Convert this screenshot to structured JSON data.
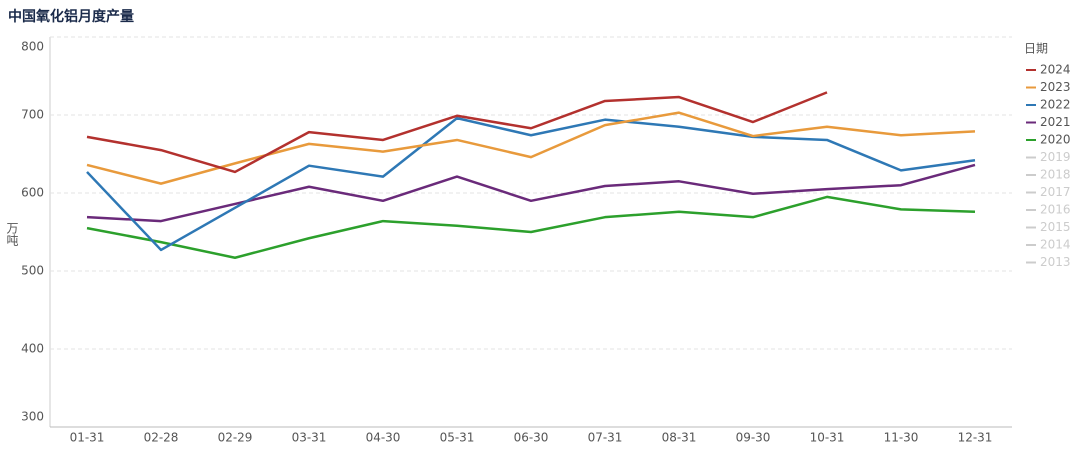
{
  "chart_data": {
    "type": "line",
    "title": "中国氧化铝月度产量",
    "y_label": "万吨",
    "legend_title": "日期",
    "categories": [
      "01-31",
      "02-28",
      "02-29",
      "03-31",
      "04-30",
      "05-31",
      "06-30",
      "07-31",
      "08-31",
      "09-30",
      "10-31",
      "11-30",
      "12-31"
    ],
    "series": [
      {
        "name": "2024",
        "color": "#b3312e",
        "values": [
          672,
          655,
          627,
          678,
          668,
          699,
          683,
          718,
          723,
          691,
          729,
          null,
          null
        ]
      },
      {
        "name": "2023",
        "color": "#e89a3c",
        "values": [
          636,
          612,
          638,
          663,
          653,
          668,
          646,
          687,
          703,
          673,
          685,
          674,
          679
        ]
      },
      {
        "name": "2022",
        "color": "#2e78b5",
        "values": [
          627,
          527,
          581,
          635,
          621,
          696,
          674,
          694,
          685,
          672,
          668,
          629,
          642
        ]
      },
      {
        "name": "2021",
        "color": "#6a2a7a",
        "values": [
          569,
          564,
          586,
          608,
          590,
          621,
          590,
          609,
          615,
          599,
          605,
          610,
          636
        ]
      },
      {
        "name": "2020",
        "color": "#2ca02c",
        "values": [
          555,
          537,
          517,
          542,
          564,
          558,
          550,
          569,
          576,
          569,
          595,
          579,
          576
        ]
      }
    ],
    "hidden_legend": [
      "2019",
      "2018",
      "2017",
      "2016",
      "2015",
      "2014",
      "2013"
    ],
    "hidden_color": "#cccccc",
    "ylim": [
      300,
      800
    ],
    "yticks": [
      300,
      400,
      500,
      600,
      700,
      800
    ],
    "grid": true
  }
}
